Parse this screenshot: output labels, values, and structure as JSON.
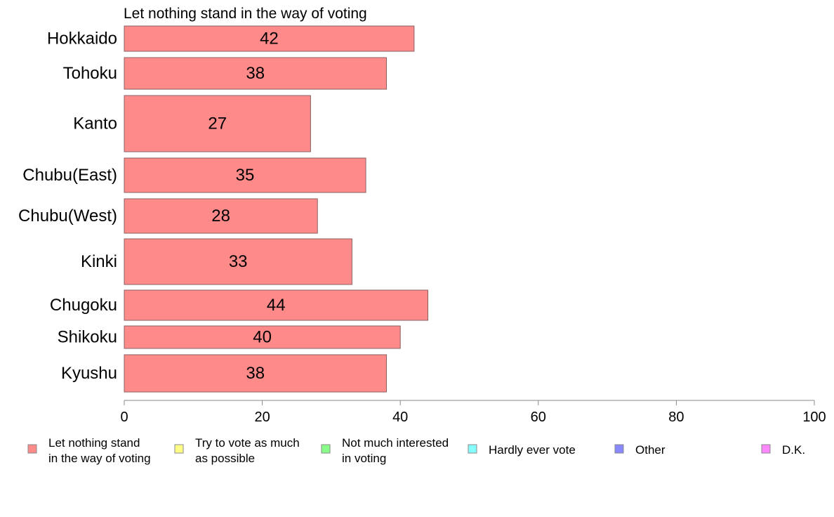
{
  "chart_data": {
    "type": "bar",
    "orientation": "horizontal",
    "title": "Let nothing stand in the way of voting",
    "categories": [
      "Hokkaido",
      "Tohoku",
      "Kanto",
      "Chubu(East)",
      "Chubu(West)",
      "Kinki",
      "Chugoku",
      "Shikoku",
      "Kyushu"
    ],
    "values": [
      42,
      38,
      27,
      35,
      28,
      33,
      44,
      40,
      38
    ],
    "value_labels": [
      "42",
      "38",
      "27",
      "35",
      "28",
      "33",
      "44",
      "40",
      "38"
    ],
    "xlim": [
      0,
      100
    ],
    "xticks": [
      0,
      20,
      40,
      60,
      80,
      100
    ],
    "xtick_labels": [
      "0",
      "20",
      "40",
      "60",
      "80",
      "100"
    ],
    "xlabel": "",
    "ylabel": "",
    "grid": false,
    "bar_color": "#ff8a8a",
    "bar_edge_color": "#8a6060",
    "axis_color": "#888888",
    "legend": {
      "position": "bottom",
      "entries": [
        {
          "lines": [
            "Let nothing stand",
            "in the way of voting"
          ],
          "color": "#ff8a8a"
        },
        {
          "lines": [
            "Try to vote as much",
            "as possible"
          ],
          "color": "#ffff88"
        },
        {
          "lines": [
            "Not much interested",
            "in voting"
          ],
          "color": "#88ff88"
        },
        {
          "lines": [
            "Hardly ever vote"
          ],
          "color": "#88ffff"
        },
        {
          "lines": [
            "Other"
          ],
          "color": "#8888ff"
        },
        {
          "lines": [
            "D.K."
          ],
          "color": "#ff88ff"
        }
      ]
    }
  }
}
